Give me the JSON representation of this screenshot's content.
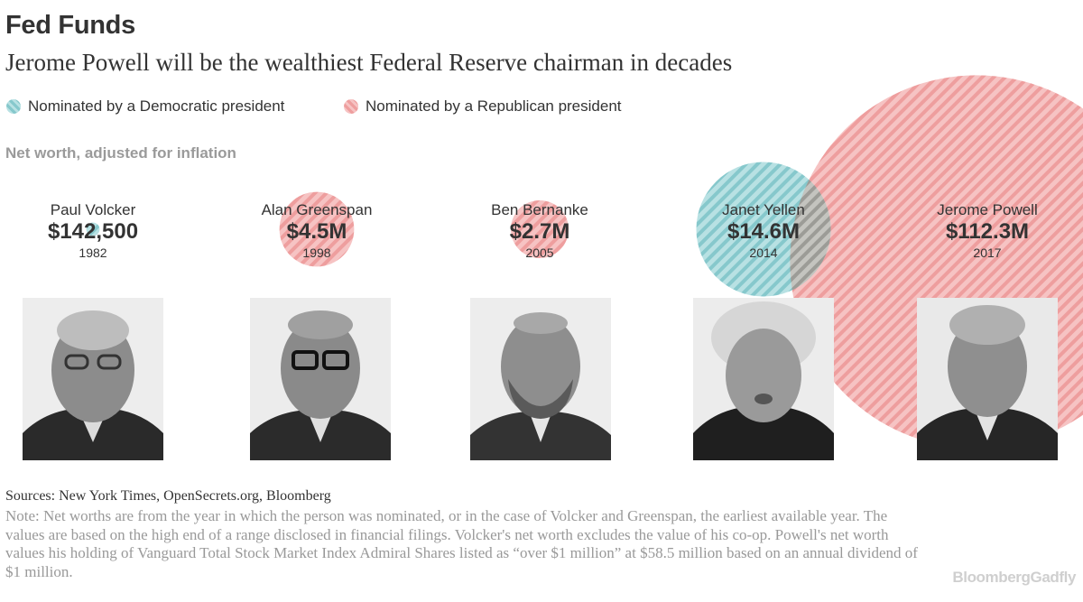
{
  "header": {
    "title": "Fed Funds",
    "subtitle": "Jerome Powell will be the wealthiest Federal Reserve chairman in decades"
  },
  "legend": {
    "democratic_label": "Nominated by a Democratic president",
    "republican_label": "Nominated by a Republican president"
  },
  "colors": {
    "democratic": "#8ecfd2",
    "republican": "#f3a9a9",
    "overlap": "#a9a9a4"
  },
  "chart_data": {
    "type": "bubble",
    "title": "Fed Funds",
    "subtitle": "Jerome Powell will be the wealthiest Federal Reserve chairman in decades",
    "ylabel": "Net worth, adjusted for inflation",
    "series": [
      {
        "name": "Paul Volcker",
        "value_label": "$142,500",
        "value_musd": 0.1425,
        "year": "1982",
        "party": "democratic"
      },
      {
        "name": "Alan Greenspan",
        "value_label": "$4.5M",
        "value_musd": 4.5,
        "year": "1998",
        "party": "republican"
      },
      {
        "name": "Ben Bernanke",
        "value_label": "$2.7M",
        "value_musd": 2.7,
        "year": "2005",
        "party": "republican"
      },
      {
        "name": "Janet Yellen",
        "value_label": "$14.6M",
        "value_musd": 14.6,
        "year": "2014",
        "party": "democratic"
      },
      {
        "name": "Jerome Powell",
        "value_label": "$112.3M",
        "value_musd": 112.3,
        "year": "2017",
        "party": "republican"
      }
    ]
  },
  "footer": {
    "sources": "Sources: New York Times, OpenSecrets.org, Bloomberg",
    "note": "Note: Net worths are from the year in which the person was nominated, or in the case of Volcker and Greenspan, the earliest available year. The values are based on the high end of a range disclosed in financial filings. Volcker's net worth excludes the value of his co-op. Powell's net worth values his holding of Vanguard Total Stock Market Index Admiral Shares listed as “over $1 million” at $58.5 million based on an annual dividend of $1 million.",
    "brand": "BloombergGadfly"
  }
}
